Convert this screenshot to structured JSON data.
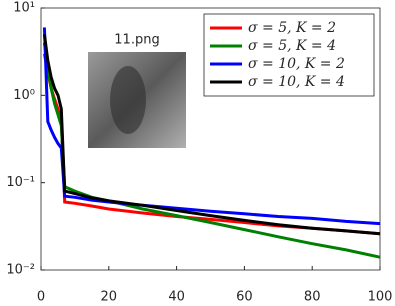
{
  "chart_data": {
    "type": "line",
    "annotation": "11.png",
    "x": [
      1,
      2,
      3,
      4,
      5,
      6,
      7,
      10,
      15,
      20,
      30,
      40,
      50,
      60,
      70,
      80,
      90,
      100
    ],
    "series": [
      {
        "name": "σ = 5, K = 2",
        "color": "#ff0000",
        "values": [
          3,
          1.8,
          1.2,
          0.9,
          0.7,
          0.5,
          0.06,
          0.058,
          0.054,
          0.05,
          0.045,
          0.041,
          0.038,
          0.035,
          0.032,
          0.03,
          0.028,
          0.026
        ]
      },
      {
        "name": "σ = 5, K = 4",
        "color": "#008000",
        "values": [
          4,
          2,
          1.2,
          0.8,
          0.6,
          0.45,
          0.09,
          0.08,
          0.068,
          0.062,
          0.05,
          0.042,
          0.035,
          0.029,
          0.024,
          0.02,
          0.017,
          0.014
        ]
      },
      {
        "name": "σ = 10, K = 2",
        "color": "#0000ff",
        "values": [
          6,
          0.5,
          0.4,
          0.33,
          0.28,
          0.25,
          0.07,
          0.068,
          0.063,
          0.06,
          0.055,
          0.051,
          0.047,
          0.044,
          0.041,
          0.039,
          0.036,
          0.034
        ]
      },
      {
        "name": "σ = 10, K = 4",
        "color": "#000000",
        "values": [
          5,
          2.5,
          1.6,
          1.2,
          1.0,
          0.7,
          0.08,
          0.075,
          0.067,
          0.062,
          0.055,
          0.048,
          0.042,
          0.037,
          0.033,
          0.03,
          0.028,
          0.026
        ]
      }
    ],
    "xlim": [
      0,
      100
    ],
    "xticks": [
      0,
      20,
      40,
      60,
      80,
      100
    ],
    "ylim": [
      0.01,
      10
    ],
    "log_y": true,
    "yticks": [
      {
        "value": 0.01,
        "label": "10⁻²"
      },
      {
        "value": 0.1,
        "label": "10⁻¹"
      },
      {
        "value": 1,
        "label": "10⁰"
      },
      {
        "value": 10,
        "label": "10¹"
      }
    ],
    "legend": "upper right",
    "grid": false
  }
}
